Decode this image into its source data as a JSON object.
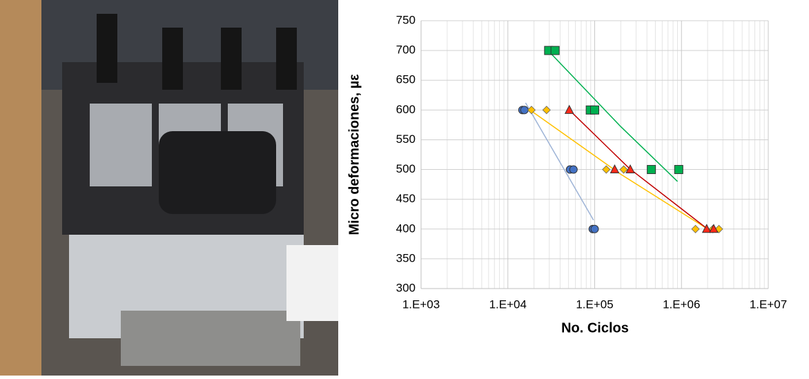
{
  "chart_data": {
    "type": "scatter",
    "xlabel": "No. Ciclos",
    "ylabel": "Micro deformaciones, µε",
    "xscale": "log",
    "xlim": [
      1000,
      10000000
    ],
    "xticks": [
      {
        "value": 1000,
        "label": "1.E+03"
      },
      {
        "value": 10000,
        "label": "1.E+04"
      },
      {
        "value": 100000,
        "label": "1.E+05"
      },
      {
        "value": 1000000,
        "label": "1.E+06"
      },
      {
        "value": 10000000,
        "label": "1.E+07"
      }
    ],
    "ylim": [
      300,
      750
    ],
    "yticks": [
      300,
      350,
      400,
      450,
      500,
      550,
      600,
      650,
      700,
      750
    ],
    "grid": true,
    "minor_grid": true,
    "series": [
      {
        "marker": "circle",
        "color": "#4472c4",
        "trend_color": "#9db3d6",
        "x": [
          14700,
          15500,
          52000,
          57000,
          95000,
          100000
        ],
        "values": [
          600,
          600,
          500,
          500,
          400,
          400
        ],
        "trend": {
          "x": [
            16000,
            97000
          ],
          "values": [
            612,
            415
          ]
        }
      },
      {
        "marker": "diamond",
        "color": "#ffc000",
        "trend_color": "#ffc000",
        "x": [
          18700,
          27900,
          136000,
          216000,
          1450000,
          2300000,
          2700000
        ],
        "values": [
          600,
          600,
          500,
          500,
          400,
          400,
          400
        ],
        "trend": {
          "x": [
            18000,
            200000,
            2000000
          ],
          "values": [
            600,
            492,
            400
          ]
        }
      },
      {
        "marker": "triangle",
        "color": "#ff2a1a",
        "trend_color": "#c00000",
        "x": [
          51000,
          170000,
          257000,
          1950000,
          2350000
        ],
        "values": [
          600,
          500,
          500,
          400,
          400
        ],
        "trend": {
          "x": [
            51000,
            250000,
            2000000
          ],
          "values": [
            600,
            502,
            400
          ]
        }
      },
      {
        "marker": "square",
        "color": "#00b050",
        "trend_color": "#00b050",
        "x": [
          29500,
          35000,
          89000,
          100000,
          450000,
          930000
        ],
        "values": [
          700,
          700,
          600,
          600,
          500,
          500
        ],
        "trend": {
          "x": [
            29000,
            200000,
            900000
          ],
          "values": [
            700,
            572,
            480
          ]
        }
      }
    ]
  }
}
